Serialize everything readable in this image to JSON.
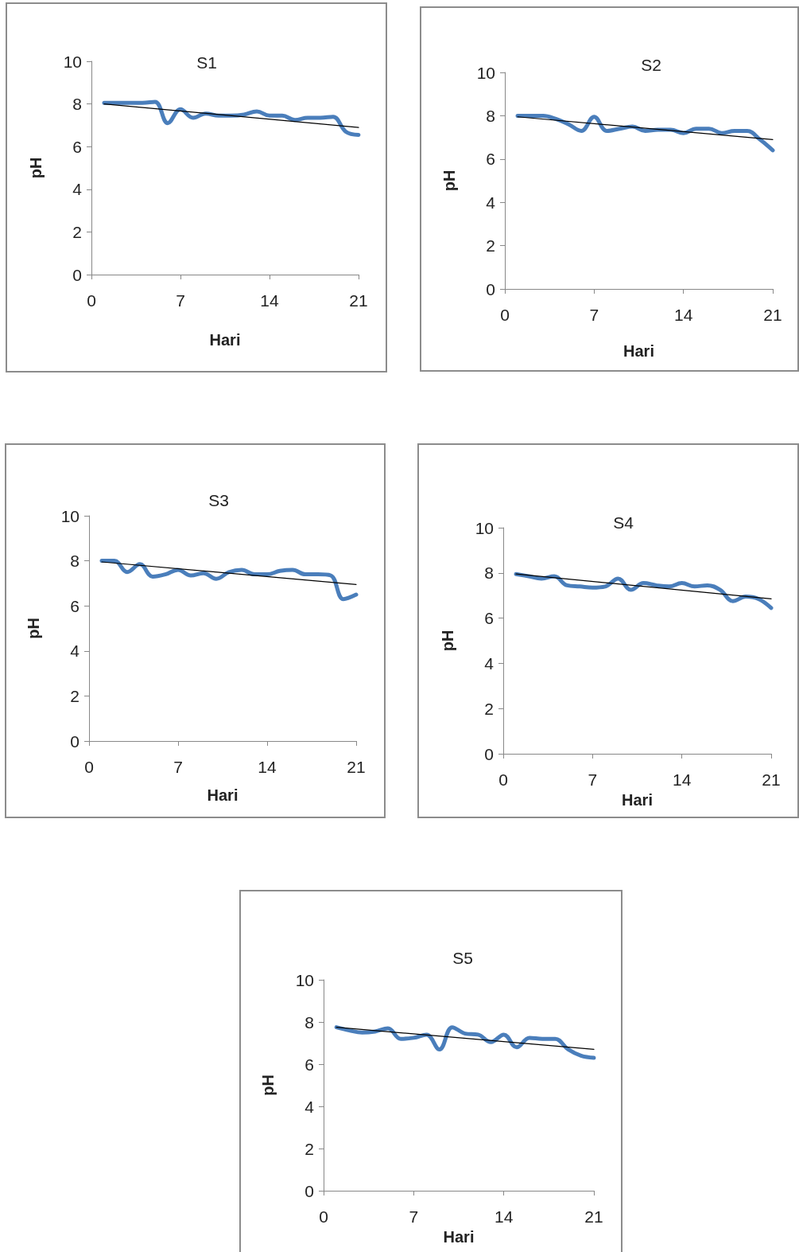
{
  "chart_data": [
    {
      "type": "line",
      "title": "S1",
      "xlabel": "Hari",
      "ylabel": "pH",
      "xlim": [
        0,
        21
      ],
      "xticks": [
        0,
        7,
        14,
        21
      ],
      "ylim": [
        0,
        10
      ],
      "yticks": [
        0,
        2,
        4,
        6,
        8,
        10
      ],
      "marker": "none",
      "series": [
        {
          "color": "#4a7ebb",
          "x": [
            1,
            2,
            3,
            4,
            5,
            6,
            7,
            8,
            9,
            10,
            11,
            12,
            13,
            14,
            15,
            16,
            17,
            18,
            19,
            20,
            21
          ],
          "values": [
            8.05,
            8.05,
            8.05,
            8.05,
            8.1,
            7.1,
            7.75,
            7.35,
            7.55,
            7.45,
            7.45,
            7.5,
            7.65,
            7.45,
            7.45,
            7.25,
            7.35,
            7.35,
            7.4,
            6.7,
            6.55
          ]
        },
        {
          "type": "line",
          "color": "#000000",
          "x": [
            1,
            21
          ],
          "values": [
            8.0,
            6.9
          ]
        }
      ]
    },
    {
      "type": "line",
      "title": "S2",
      "xlabel": "Hari",
      "ylabel": "pH",
      "xlim": [
        0,
        21
      ],
      "xticks": [
        0,
        7,
        14,
        21
      ],
      "ylim": [
        0,
        10
      ],
      "yticks": [
        0,
        2,
        4,
        6,
        8,
        10
      ],
      "marker": "none",
      "series": [
        {
          "color": "#4a7ebb",
          "x": [
            1,
            2,
            3,
            4,
            5,
            6,
            7,
            8,
            9,
            10,
            11,
            12,
            13,
            14,
            15,
            16,
            17,
            18,
            19,
            20,
            21
          ],
          "values": [
            8.0,
            8.0,
            8.0,
            7.85,
            7.6,
            7.3,
            7.95,
            7.3,
            7.4,
            7.5,
            7.3,
            7.35,
            7.35,
            7.2,
            7.4,
            7.4,
            7.2,
            7.3,
            7.3,
            6.9,
            6.4
          ]
        },
        {
          "type": "line",
          "color": "#000000",
          "x": [
            1,
            21
          ],
          "values": [
            7.95,
            6.9
          ]
        }
      ]
    },
    {
      "type": "line",
      "title": "S3",
      "xlabel": "Hari",
      "ylabel": "pH",
      "xlim": [
        0,
        21
      ],
      "xticks": [
        0,
        7,
        14,
        21
      ],
      "ylim": [
        0,
        10
      ],
      "yticks": [
        0,
        2,
        4,
        6,
        8,
        10
      ],
      "marker": "none",
      "series": [
        {
          "color": "#4a7ebb",
          "x": [
            1,
            2,
            3,
            4,
            5,
            6,
            7,
            8,
            9,
            10,
            11,
            12,
            13,
            14,
            15,
            16,
            17,
            18,
            19,
            20,
            21
          ],
          "values": [
            8.0,
            8.0,
            7.5,
            7.85,
            7.3,
            7.4,
            7.6,
            7.35,
            7.45,
            7.2,
            7.5,
            7.6,
            7.4,
            7.4,
            7.55,
            7.6,
            7.4,
            7.4,
            7.35,
            6.3,
            6.5
          ]
        },
        {
          "type": "line",
          "color": "#000000",
          "x": [
            1,
            21
          ],
          "values": [
            7.95,
            6.95
          ]
        }
      ]
    },
    {
      "type": "line",
      "title": "S4",
      "xlabel": "Hari",
      "ylabel": "pH",
      "xlim": [
        0,
        21
      ],
      "xticks": [
        0,
        7,
        14,
        21
      ],
      "ylim": [
        0,
        10
      ],
      "yticks": [
        0,
        2,
        4,
        6,
        8,
        10
      ],
      "marker": "none",
      "series": [
        {
          "color": "#4a7ebb",
          "x": [
            1,
            2,
            3,
            4,
            5,
            6,
            7,
            8,
            9,
            10,
            11,
            12,
            13,
            14,
            15,
            16,
            17,
            18,
            19,
            20,
            21
          ],
          "values": [
            7.95,
            7.85,
            7.75,
            7.85,
            7.45,
            7.4,
            7.35,
            7.4,
            7.75,
            7.25,
            7.55,
            7.45,
            7.4,
            7.55,
            7.4,
            7.45,
            7.25,
            6.75,
            6.95,
            6.85,
            6.45
          ]
        },
        {
          "type": "line",
          "color": "#000000",
          "x": [
            1,
            21
          ],
          "values": [
            7.95,
            6.85
          ]
        }
      ]
    },
    {
      "type": "line",
      "title": "S5",
      "xlabel": "Hari",
      "ylabel": "pH",
      "xlim": [
        0,
        21
      ],
      "xticks": [
        0,
        7,
        14,
        21
      ],
      "ylim": [
        0,
        10
      ],
      "yticks": [
        0,
        2,
        4,
        6,
        8,
        10
      ],
      "marker": "none",
      "series": [
        {
          "color": "#4a7ebb",
          "x": [
            1,
            2,
            3,
            4,
            5,
            6,
            7,
            8,
            9,
            10,
            11,
            12,
            13,
            14,
            15,
            16,
            17,
            18,
            19,
            20,
            21
          ],
          "values": [
            7.75,
            7.6,
            7.5,
            7.55,
            7.7,
            7.2,
            7.25,
            7.4,
            6.7,
            7.75,
            7.45,
            7.4,
            7.05,
            7.4,
            6.8,
            7.25,
            7.2,
            7.2,
            6.7,
            6.4,
            6.3
          ]
        },
        {
          "type": "line",
          "color": "#000000",
          "x": [
            1,
            21
          ],
          "values": [
            7.75,
            6.7
          ]
        }
      ]
    }
  ]
}
